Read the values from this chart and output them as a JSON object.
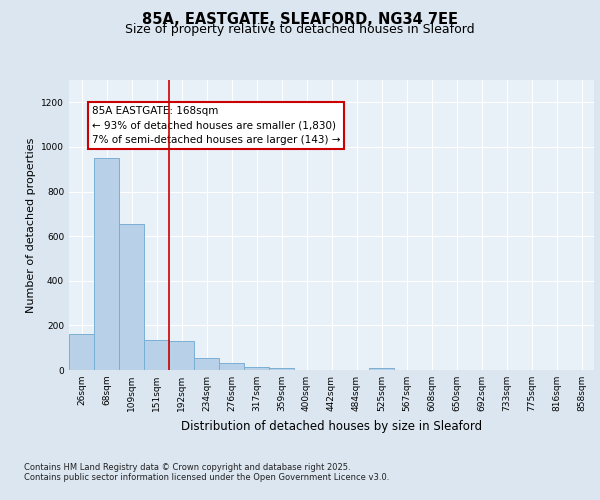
{
  "title_line1": "85A, EASTGATE, SLEAFORD, NG34 7EE",
  "title_line2": "Size of property relative to detached houses in Sleaford",
  "xlabel": "Distribution of detached houses by size in Sleaford",
  "ylabel": "Number of detached properties",
  "bar_labels": [
    "26sqm",
    "68sqm",
    "109sqm",
    "151sqm",
    "192sqm",
    "234sqm",
    "276sqm",
    "317sqm",
    "359sqm",
    "400sqm",
    "442sqm",
    "484sqm",
    "525sqm",
    "567sqm",
    "608sqm",
    "650sqm",
    "692sqm",
    "733sqm",
    "775sqm",
    "816sqm",
    "858sqm"
  ],
  "bar_values": [
    160,
    950,
    655,
    135,
    130,
    55,
    30,
    15,
    8,
    0,
    0,
    0,
    10,
    0,
    0,
    0,
    0,
    0,
    0,
    0,
    0
  ],
  "bar_color": "#b8d0e8",
  "bar_edgecolor": "#7aafd4",
  "bar_linewidth": 0.7,
  "vline_color": "#cc0000",
  "vline_linewidth": 1.2,
  "vline_x": 3.5,
  "annotation_text": "85A EASTGATE: 168sqm\n← 93% of detached houses are smaller (1,830)\n7% of semi-detached houses are larger (143) →",
  "annotation_box_edgecolor": "#cc0000",
  "annotation_box_facecolor": "#ffffff",
  "ylim": [
    0,
    1300
  ],
  "background_color": "#dce6f0",
  "plot_background": "#e8f0f8",
  "grid_color": "#ffffff",
  "footer_text": "Contains HM Land Registry data © Crown copyright and database right 2025.\nContains public sector information licensed under the Open Government Licence v3.0.",
  "title_fontsize": 10.5,
  "subtitle_fontsize": 9,
  "tick_fontsize": 6.5,
  "ylabel_fontsize": 8,
  "xlabel_fontsize": 8.5,
  "annotation_fontsize": 7.5,
  "footer_fontsize": 6
}
